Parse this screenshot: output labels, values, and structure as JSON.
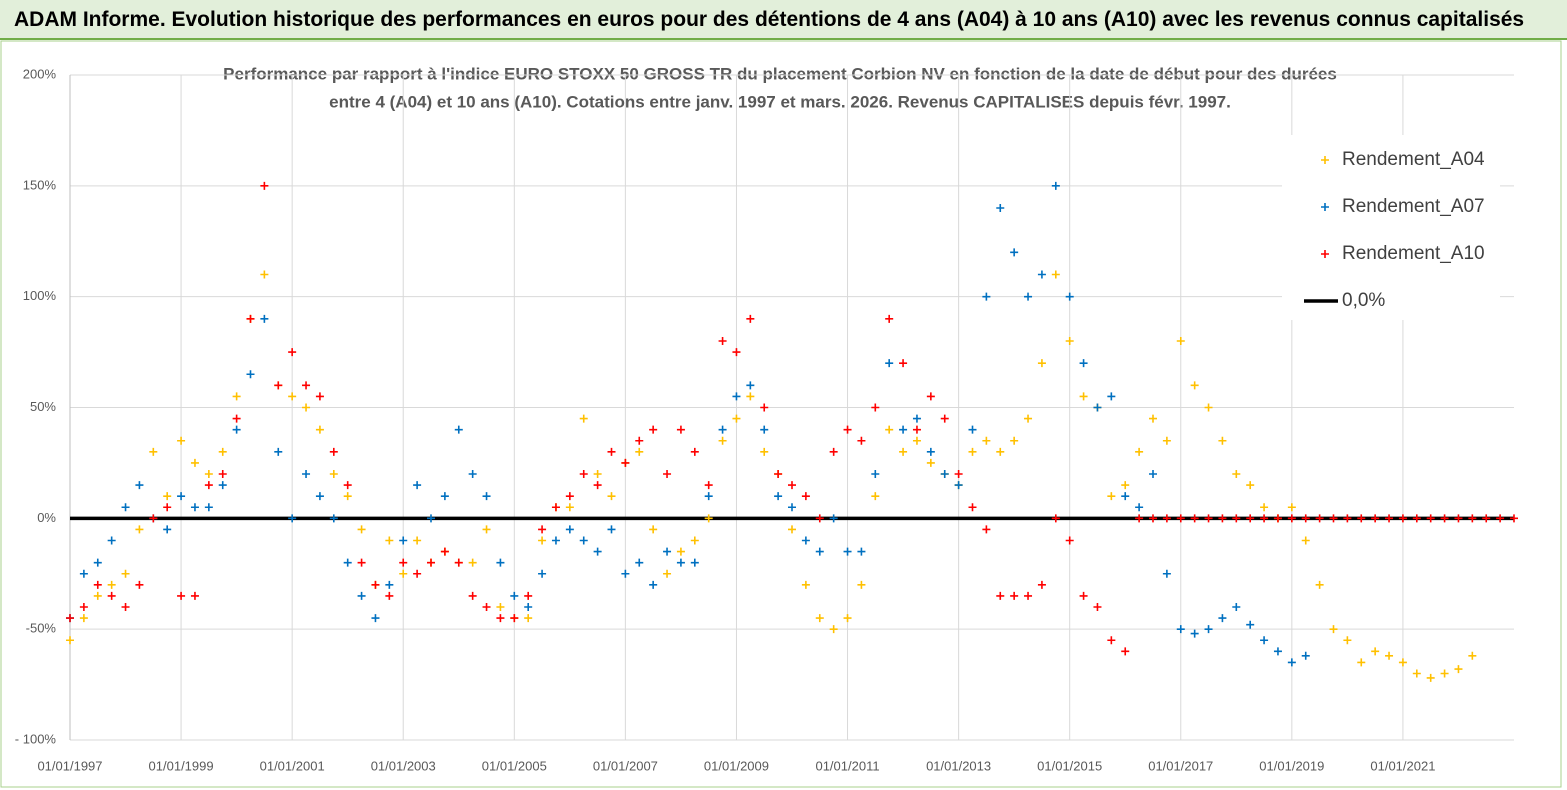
{
  "chart_data": {
    "type": "scatter",
    "title": "ADAM Informe. Evolution historique des performances en euros pour des détentions de 4 ans (A04) à 10 ans (A10) avec les revenus connus capitalisés",
    "subtitle": [
      "Performance par rapport à l'indice EURO STOXX 50 GROSS TR  du placement Corbion NV en fonction de la date de début pour des durées",
      "entre 4 (A04) et 10 ans (A10). Cotations entre janv. 1997 et mars. 2026. Revenus CAPITALISES depuis févr. 1997."
    ],
    "xlim": [
      1997,
      2023
    ],
    "xticks": [
      {
        "value": 1997,
        "label": "01/01/1997"
      },
      {
        "value": 1999,
        "label": "01/01/1999"
      },
      {
        "value": 2001,
        "label": "01/01/2001"
      },
      {
        "value": 2003,
        "label": "01/01/2003"
      },
      {
        "value": 2005,
        "label": "01/01/2005"
      },
      {
        "value": 2007,
        "label": "01/01/2007"
      },
      {
        "value": 2009,
        "label": "01/01/2009"
      },
      {
        "value": 2011,
        "label": "01/01/2011"
      },
      {
        "value": 2013,
        "label": "01/01/2013"
      },
      {
        "value": 2015,
        "label": "01/01/2015"
      },
      {
        "value": 2017,
        "label": "01/01/2017"
      },
      {
        "value": 2019,
        "label": "01/01/2019"
      },
      {
        "value": 2021,
        "label": "01/01/2021"
      }
    ],
    "ylim": [
      -100,
      200
    ],
    "yticks": [
      {
        "value": -100,
        "label": "- 100%"
      },
      {
        "value": -50,
        "label": "-50%"
      },
      {
        "value": 0,
        "label": "0%"
      },
      {
        "value": 50,
        "label": "50%"
      },
      {
        "value": 100,
        "label": "100%"
      },
      {
        "value": 150,
        "label": "150%"
      },
      {
        "value": 200,
        "label": "200%"
      }
    ],
    "grid": true,
    "legend": "top-right",
    "x": [
      1997,
      1997.25,
      1997.5,
      1997.75,
      1998,
      1998.25,
      1998.5,
      1998.75,
      1999,
      1999.25,
      1999.5,
      1999.75,
      2000,
      2000.25,
      2000.5,
      2000.75,
      2001,
      2001.25,
      2001.5,
      2001.75,
      2002,
      2002.25,
      2002.5,
      2002.75,
      2003,
      2003.25,
      2003.5,
      2003.75,
      2004,
      2004.25,
      2004.5,
      2004.75,
      2005,
      2005.25,
      2005.5,
      2005.75,
      2006,
      2006.25,
      2006.5,
      2006.75,
      2007,
      2007.25,
      2007.5,
      2007.75,
      2008,
      2008.25,
      2008.5,
      2008.75,
      2009,
      2009.25,
      2009.5,
      2009.75,
      2010,
      2010.25,
      2010.5,
      2010.75,
      2011,
      2011.25,
      2011.5,
      2011.75,
      2012,
      2012.25,
      2012.5,
      2012.75,
      2013,
      2013.25,
      2013.5,
      2013.75,
      2014,
      2014.25,
      2014.5,
      2014.75,
      2015,
      2015.25,
      2015.5,
      2015.75,
      2016,
      2016.25,
      2016.5,
      2016.75,
      2017,
      2017.25,
      2017.5,
      2017.75,
      2018,
      2018.25,
      2018.5,
      2018.75,
      2019,
      2019.25,
      2019.5,
      2019.75,
      2020,
      2020.25,
      2020.5,
      2020.75,
      2021,
      2021.25,
      2021.5,
      2021.75,
      2022,
      2022.25,
      2022.5,
      2022.75,
      2023
    ],
    "series": [
      {
        "name": "Rendement_A04",
        "color": "#ffc000",
        "values": [
          -55,
          -45,
          -35,
          -30,
          -25,
          -5,
          30,
          10,
          35,
          25,
          20,
          30,
          55,
          90,
          110,
          60,
          55,
          50,
          40,
          20,
          10,
          -5,
          -30,
          -10,
          -25,
          -10,
          -20,
          -15,
          -20,
          -20,
          -5,
          -40,
          -45,
          -45,
          -10,
          5,
          5,
          45,
          20,
          10,
          25,
          30,
          -5,
          -25,
          -15,
          -10,
          0,
          35,
          45,
          55,
          30,
          20,
          -5,
          -30,
          -45,
          -50,
          -45,
          -30,
          10,
          40,
          30,
          35,
          25,
          20,
          15,
          30,
          35,
          30,
          35,
          45,
          70,
          110,
          80,
          55,
          50,
          10,
          15,
          30,
          45,
          35,
          80,
          60,
          50,
          35,
          20,
          15,
          5,
          0,
          5,
          -10,
          -30,
          -50,
          -55,
          -65,
          -60,
          -62,
          -65,
          -70,
          -72,
          -70,
          -68,
          -62,
          null,
          null,
          null
        ]
      },
      {
        "name": "Rendement_A07",
        "color": "#0070c0",
        "values": [
          -45,
          -25,
          -20,
          -10,
          5,
          15,
          0,
          -5,
          10,
          5,
          5,
          15,
          40,
          65,
          90,
          30,
          0,
          20,
          10,
          0,
          -20,
          -35,
          -45,
          -30,
          -10,
          15,
          0,
          10,
          40,
          20,
          10,
          -20,
          -35,
          -40,
          -25,
          -10,
          -5,
          -10,
          -15,
          -5,
          -25,
          -20,
          -30,
          -15,
          -20,
          -20,
          10,
          40,
          55,
          60,
          40,
          10,
          5,
          -10,
          -15,
          0,
          -15,
          -15,
          20,
          70,
          40,
          45,
          30,
          20,
          15,
          40,
          100,
          140,
          120,
          100,
          110,
          150,
          100,
          70,
          50,
          55,
          10,
          5,
          20,
          -25,
          -50,
          -52,
          -50,
          -45,
          -40,
          -48,
          -55,
          -60,
          -65,
          -62,
          null,
          null,
          null,
          null,
          null,
          null,
          null,
          null,
          null,
          null,
          null,
          null,
          null,
          null,
          null
        ]
      },
      {
        "name": "Rendement_A10",
        "color": "#ff0000",
        "values": [
          -45,
          -40,
          -30,
          -35,
          -40,
          -30,
          0,
          5,
          -35,
          -35,
          15,
          20,
          45,
          90,
          150,
          60,
          75,
          60,
          55,
          30,
          15,
          -20,
          -30,
          -35,
          -20,
          -25,
          -20,
          -15,
          -20,
          -35,
          -40,
          -45,
          -45,
          -35,
          -5,
          5,
          10,
          20,
          15,
          30,
          25,
          35,
          40,
          20,
          40,
          30,
          15,
          80,
          75,
          90,
          50,
          20,
          15,
          10,
          0,
          30,
          40,
          35,
          50,
          90,
          70,
          40,
          55,
          45,
          20,
          5,
          -5,
          -35,
          -35,
          -35,
          -30,
          0,
          -10,
          -35,
          -40,
          -55,
          -60,
          0,
          0,
          0,
          0,
          0,
          0,
          0,
          0,
          0,
          0,
          0,
          0,
          0,
          0,
          0,
          0,
          0,
          0,
          0,
          0,
          0,
          0,
          0,
          0,
          0,
          0,
          0,
          0
        ]
      }
    ],
    "reference_line": {
      "name": "0,0%",
      "value": 0,
      "color": "#000000"
    }
  }
}
